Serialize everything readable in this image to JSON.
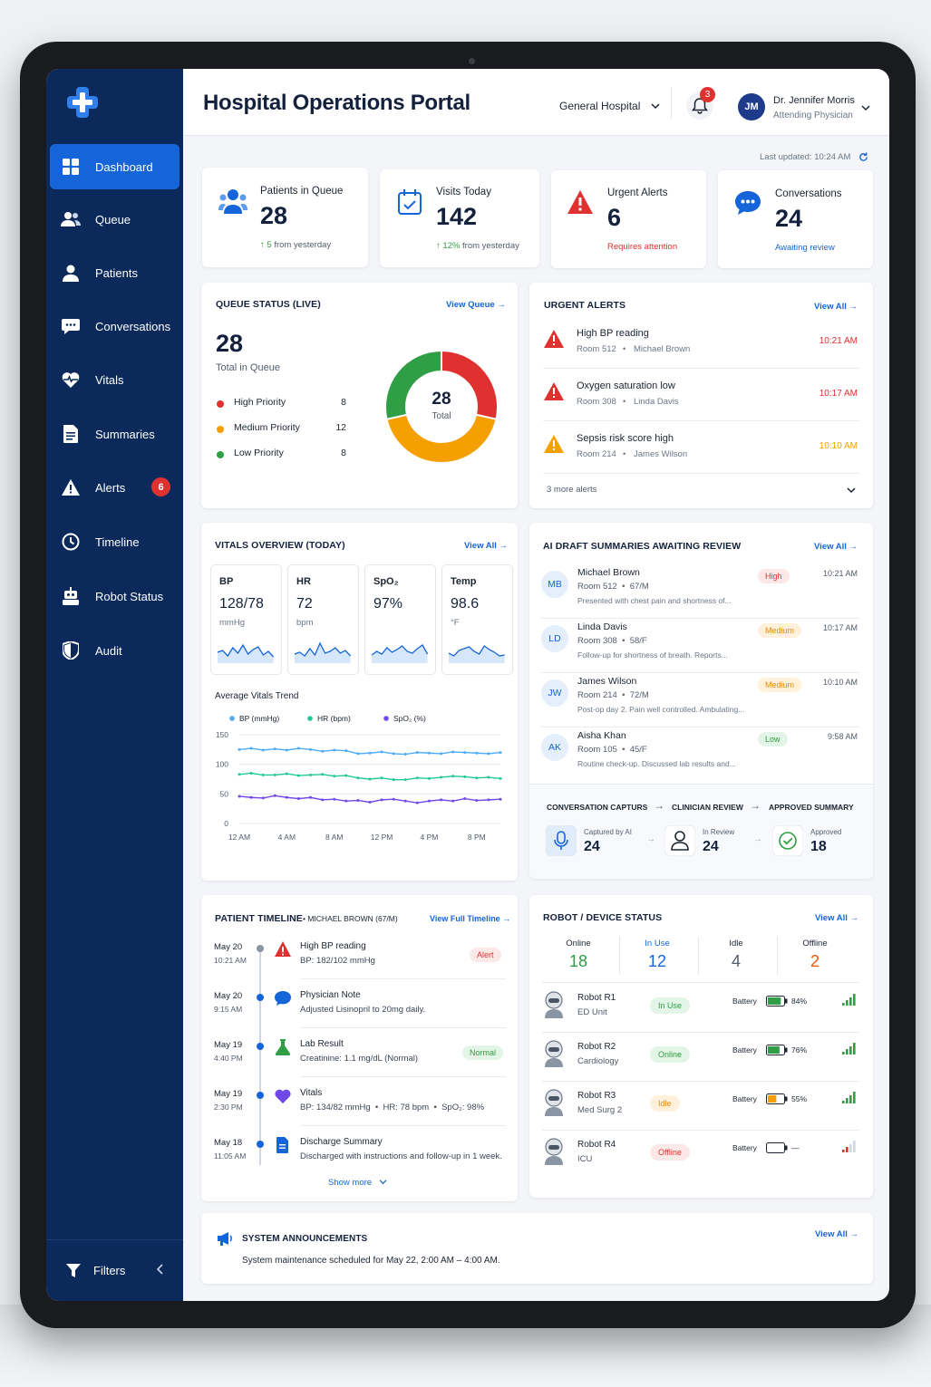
{
  "app": {
    "title": "Hospital Operations Portal",
    "hospital": "General Hospital",
    "notif_count": "3",
    "user_initials": "JM",
    "user_name": "Dr. Jennifer Morris",
    "user_role": "Attending Physician",
    "last_updated": "Last updated: 10:24 AM"
  },
  "nav": {
    "items": [
      {
        "label": "Dashboard"
      },
      {
        "label": "Queue"
      },
      {
        "label": "Patients"
      },
      {
        "label": "Conversations"
      },
      {
        "label": "Vitals"
      },
      {
        "label": "Summaries"
      },
      {
        "label": "Alerts",
        "badge": "6"
      },
      {
        "label": "Timeline"
      },
      {
        "label": "Robot Status"
      },
      {
        "label": "Audit"
      }
    ],
    "filters": "Filters"
  },
  "stats": [
    {
      "label": "Patients in Queue",
      "value": "28",
      "delta": "5",
      "sub": "from yesterday"
    },
    {
      "label": "Visits Today",
      "value": "142",
      "delta": "12%",
      "sub": "from yesterday"
    },
    {
      "label": "Urgent Alerts",
      "value": "6",
      "sub": "Requires attention"
    },
    {
      "label": "Conversations",
      "value": "24",
      "sub": "Awaiting review"
    }
  ],
  "queue": {
    "title": "QUEUE STATUS (LIVE)",
    "link": "View Queue",
    "total": "28",
    "total_label": "Total in Queue",
    "donut_label": "Total",
    "rows": [
      {
        "label": "High Priority",
        "value": 8,
        "color": "#e03131"
      },
      {
        "label": "Medium Priority",
        "value": 12,
        "color": "#f59f00"
      },
      {
        "label": "Low Priority",
        "value": 8,
        "color": "#2f9e44"
      }
    ]
  },
  "alerts": {
    "title": "URGENT ALERTS",
    "link": "View All",
    "more": "3 more alerts",
    "items": [
      {
        "title": "High BP reading",
        "room": "Room 512",
        "patient": "Michael Brown",
        "time": "10:21 AM"
      },
      {
        "title": "Oxygen saturation low",
        "room": "Room 308",
        "patient": "Linda Davis",
        "time": "10:17 AM"
      },
      {
        "title": "Sepsis risk score high",
        "room": "Room 214",
        "patient": "James Wilson",
        "time": "10:10 AM"
      }
    ]
  },
  "vitals": {
    "title": "VITALS OVERVIEW (TODAY)",
    "link": "View All",
    "boxes": [
      {
        "label": "BP",
        "value": "128/78",
        "unit": "mmHg"
      },
      {
        "label": "HR",
        "value": "72",
        "unit": "bpm"
      },
      {
        "label": "SpO₂",
        "value": "97%",
        "unit": ""
      },
      {
        "label": "Temp",
        "value": "98.6",
        "unit": "°F"
      }
    ],
    "trend_title": "Average Vitals Trend"
  },
  "chart_data": {
    "type": "line",
    "title": "Average Vitals Trend",
    "x": [
      "12 AM",
      "",
      "",
      "",
      "4 AM",
      "",
      "",
      "",
      "8 AM",
      "",
      "",
      "",
      "12 PM",
      "",
      "",
      "",
      "4 PM",
      "",
      "",
      "",
      "8 PM",
      "",
      ""
    ],
    "x_ticks": [
      "12 AM",
      "4 AM",
      "8 AM",
      "12 PM",
      "4 PM",
      "8 PM"
    ],
    "ylim": [
      0,
      150
    ],
    "y_ticks": [
      "150",
      "100",
      "50",
      "0"
    ],
    "series": [
      {
        "name": "BP (mmHg)",
        "color": "#4dabf7",
        "values": [
          125,
          127,
          124,
          126,
          124,
          127,
          125,
          122,
          124,
          123,
          118,
          119,
          121,
          118,
          117,
          120,
          119,
          118,
          121,
          120,
          119,
          118,
          120
        ]
      },
      {
        "name": "HR (bpm)",
        "color": "#20c997",
        "values": [
          83,
          85,
          82,
          82,
          84,
          81,
          82,
          83,
          80,
          81,
          77,
          75,
          77,
          74,
          74,
          77,
          76,
          78,
          80,
          79,
          77,
          78,
          76
        ]
      },
      {
        "name": "SpO₂ (%)",
        "color": "#7048e8",
        "values": [
          46,
          44,
          43,
          47,
          44,
          42,
          44,
          40,
          41,
          38,
          39,
          36,
          40,
          41,
          38,
          35,
          38,
          40,
          38,
          42,
          39,
          40,
          41
        ]
      }
    ]
  },
  "summaries": {
    "title": "AI DRAFT SUMMARIES AWAITING REVIEW",
    "link": "View All",
    "items": [
      {
        "initials": "MB",
        "name": "Michael Brown",
        "meta": "Room 512  •  67/M",
        "text": "Presented with chest pain and shortness of...",
        "priority": "High",
        "time": "10:21 AM"
      },
      {
        "initials": "LD",
        "name": "Linda Davis",
        "meta": "Room 308  •  58/F",
        "text": "Follow-up for shortness of breath. Reports...",
        "priority": "Medium",
        "time": "10:17 AM"
      },
      {
        "initials": "JW",
        "name": "James Wilson",
        "meta": "Room 214  •  72/M",
        "text": "Post-op day 2. Pain well controlled. Ambulating...",
        "priority": "Medium",
        "time": "10:10 AM"
      },
      {
        "initials": "AK",
        "name": "Aisha Khan",
        "meta": "Room 105  •  45/F",
        "text": "Routine check-up. Discussed lab results and...",
        "priority": "Low",
        "time": "9:58 AM"
      }
    ],
    "pipeline": {
      "steps": [
        "CONVERSATION CAPTURS",
        "CLINICIAN REVIEW",
        "APPROVED SUMMARY"
      ],
      "stats": [
        {
          "label": "Captured by AI",
          "value": "24"
        },
        {
          "label": "In Review",
          "value": "24"
        },
        {
          "label": "Approved",
          "value": "18"
        }
      ]
    }
  },
  "timeline": {
    "title": "PATIENT TIMELINE",
    "patient": "MICHAEL BROWN (67/M)",
    "link": "View Full Timeline",
    "show_more": "Show more",
    "items": [
      {
        "date": "May 20",
        "time": "10:21 AM",
        "title": "High BP reading",
        "detail": "BP: 182/102 mmHg",
        "tag": "Alert"
      },
      {
        "date": "May 20",
        "time": "9:15 AM",
        "title": "Physician Note",
        "detail": "Adjusted Lisinopril to 20mg daily.",
        "tag": ""
      },
      {
        "date": "May 19",
        "time": "4:40 PM",
        "title": "Lab Result",
        "detail": "Creatinine: 1.1 mg/dL (Normal)",
        "tag": "Normal"
      },
      {
        "date": "May 19",
        "time": "2:30 PM",
        "title": "Vitals",
        "detail": "BP: 134/82 mmHg  •  HR: 78 bpm  •  SpO₂: 98%",
        "tag": ""
      },
      {
        "date": "May 18",
        "time": "11:05 AM",
        "title": "Discharge Summary",
        "detail": "Discharged with instructions and follow-up in 1 week.",
        "tag": ""
      }
    ]
  },
  "robots": {
    "title": "ROBOT / DEVICE STATUS",
    "link": "View All",
    "summary": [
      {
        "label": "Online",
        "value": "18"
      },
      {
        "label": "In Use",
        "value": "12"
      },
      {
        "label": "Idle",
        "value": "4"
      },
      {
        "label": "Offline",
        "value": "2"
      }
    ],
    "battery_label": "Battery",
    "items": [
      {
        "name": "Robot R1",
        "unit": "ED Unit",
        "status": "In Use",
        "battery": "84%",
        "level": 0.84
      },
      {
        "name": "Robot R2",
        "unit": "Cardiology",
        "status": "Online",
        "battery": "76%",
        "level": 0.76
      },
      {
        "name": "Robot R3",
        "unit": "Med Surg 2",
        "status": "Idle",
        "battery": "55%",
        "level": 0.55
      },
      {
        "name": "Robot R4",
        "unit": "ICU",
        "status": "Offline",
        "battery": "—",
        "level": 0
      }
    ]
  },
  "announcements": {
    "title": "SYSTEM ANNOUNCEMENTS",
    "text": "System maintenance scheduled for May 22, 2:00 AM – 4:00 AM.",
    "link": "View All"
  }
}
